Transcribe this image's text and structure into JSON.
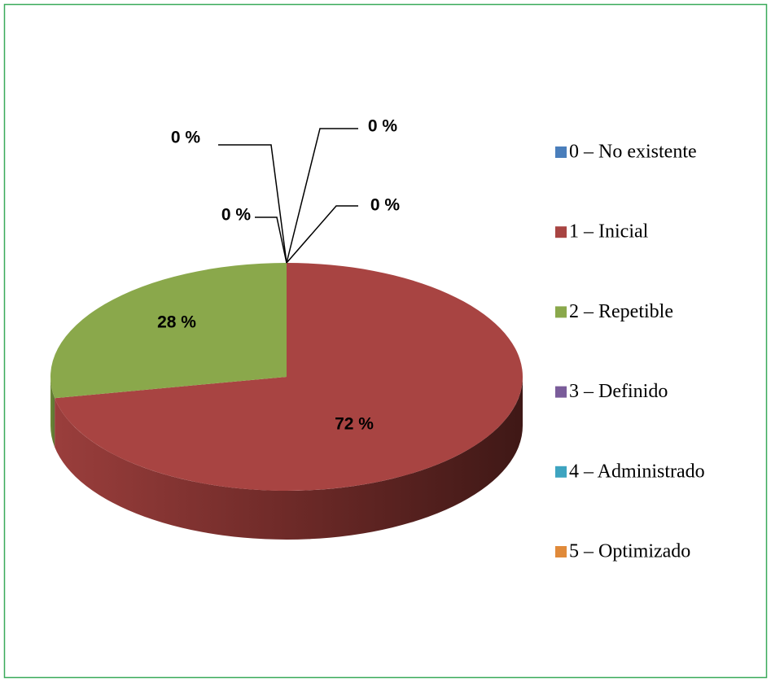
{
  "chart_data": {
    "type": "pie",
    "categories": [
      "0 – No existente",
      "1 – Inicial",
      "2 – Repetible",
      "3 – Definido",
      "4 – Administrado",
      "5 – Optimizado"
    ],
    "values": [
      0,
      72,
      28,
      0,
      0,
      0
    ],
    "value_labels": [
      "0 %",
      "72 %",
      "28 %",
      "0 %",
      "0 %",
      "0 %"
    ],
    "colors": [
      "#4a7ebb",
      "#a84442",
      "#8aa84b",
      "#7a5c9a",
      "#3ea4c0",
      "#e08a3a"
    ],
    "legend": "right"
  }
}
